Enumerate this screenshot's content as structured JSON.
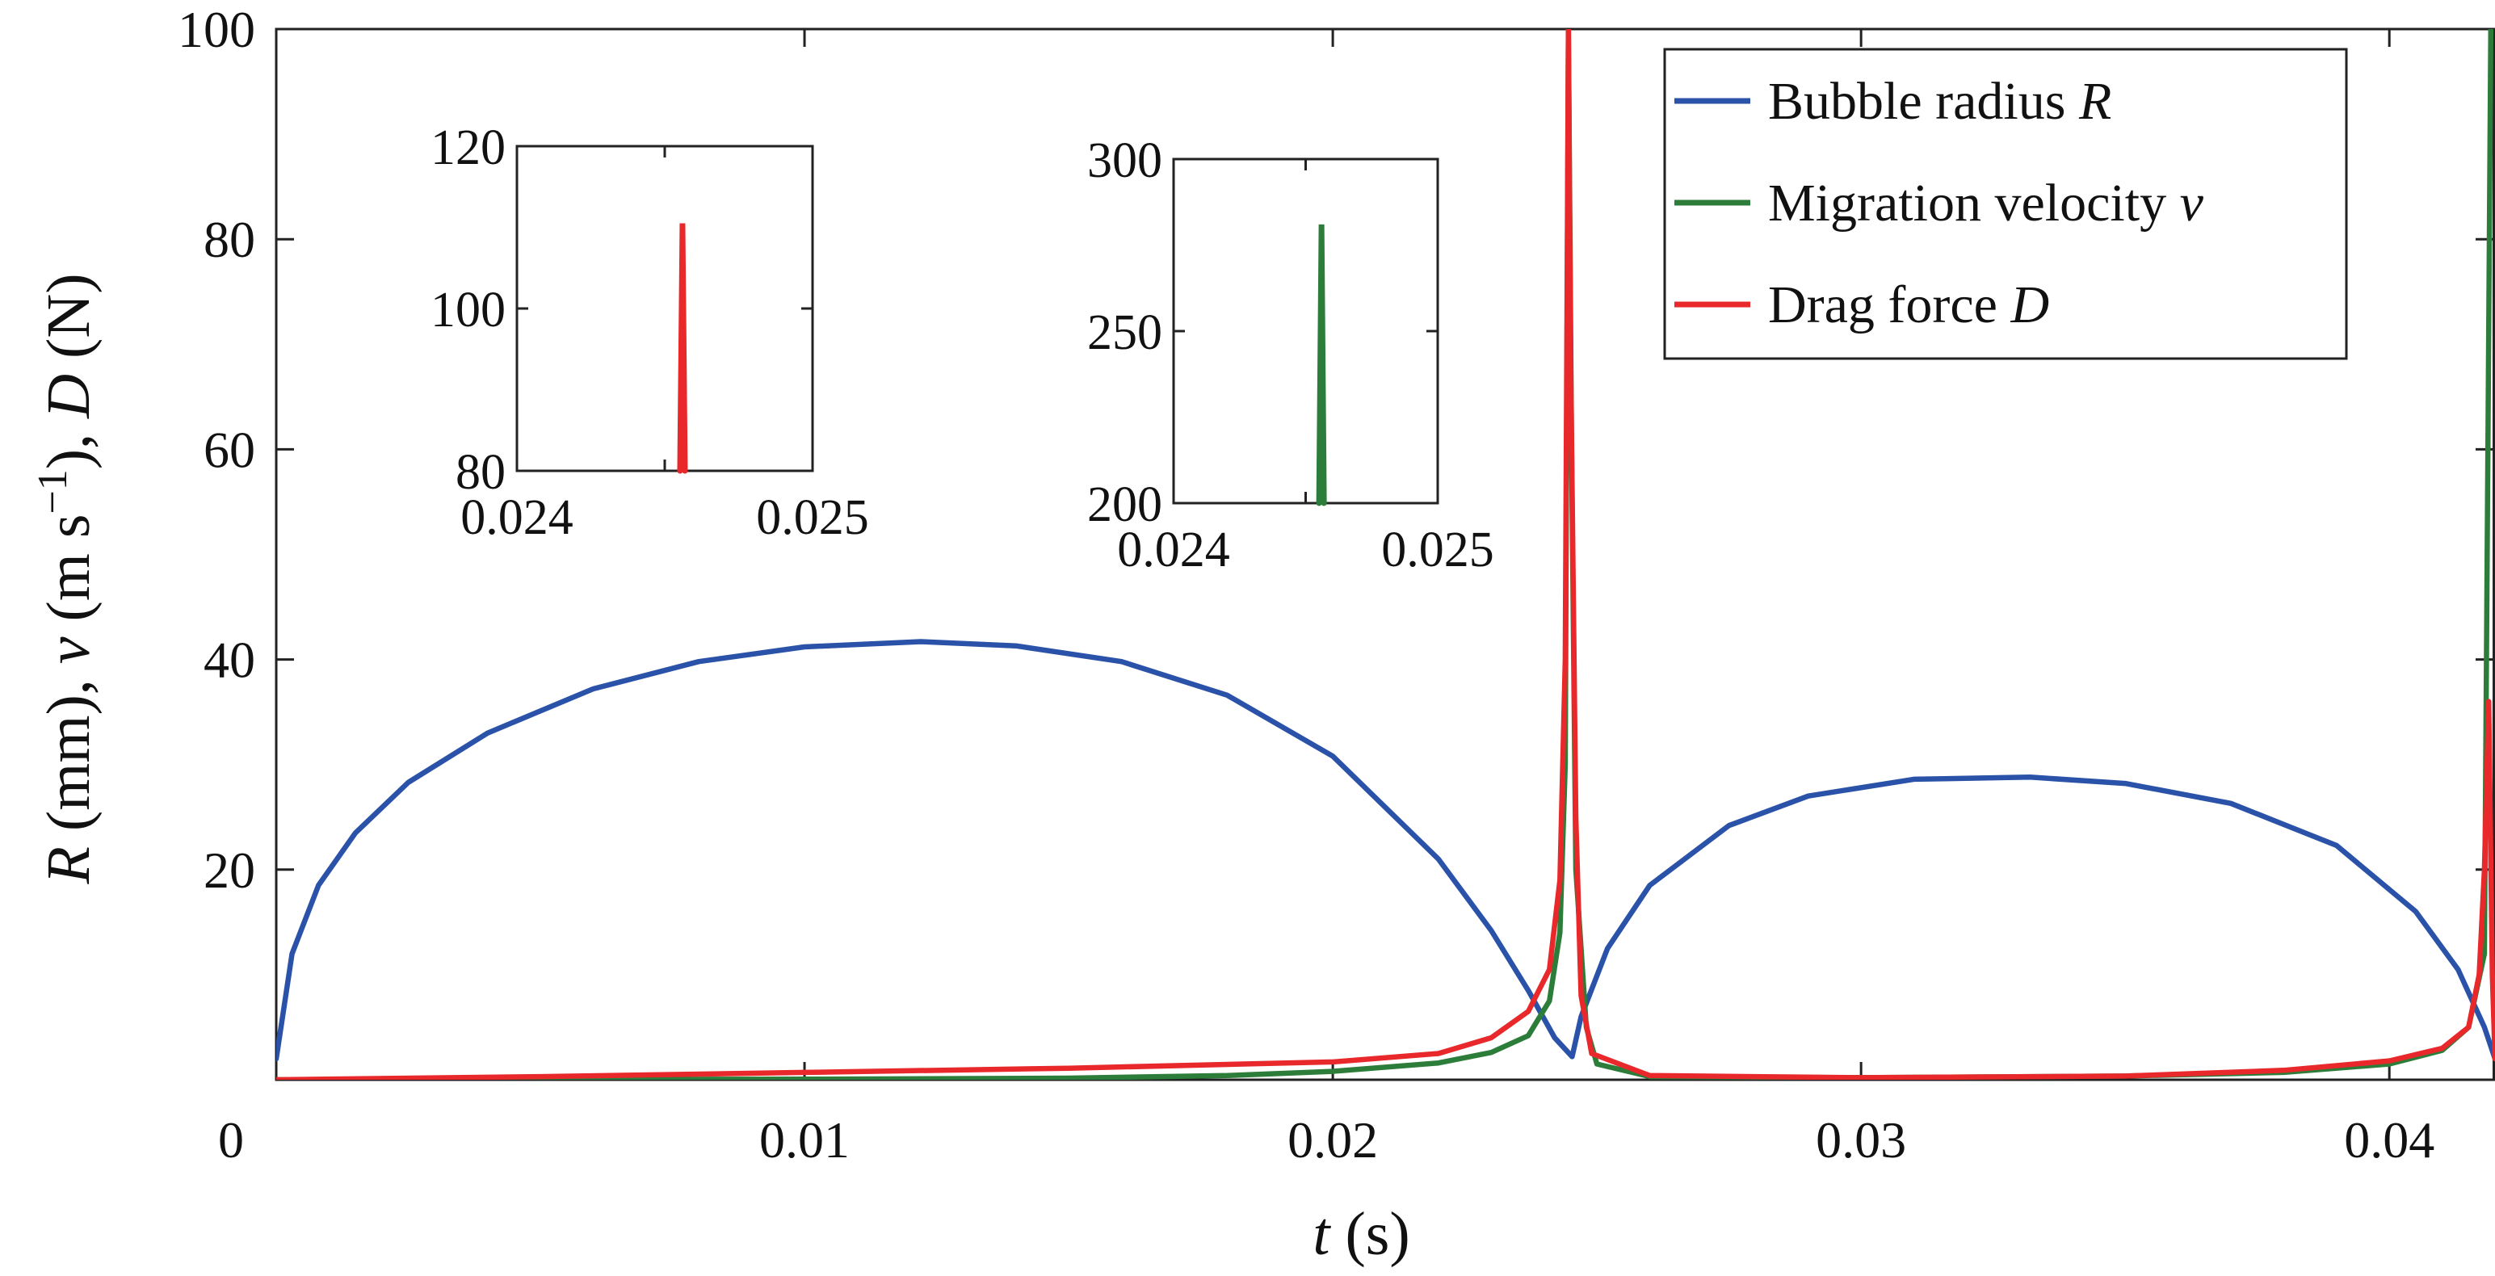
{
  "chart_data": {
    "type": "line",
    "xlabel": {
      "var": "t",
      "unit": " (s)"
    },
    "ylabel": {
      "parts": [
        {
          "text": "R",
          "italic": true
        },
        {
          "text": " (mm), "
        },
        {
          "text": "v",
          "italic": true
        },
        {
          "text": " (m s"
        },
        {
          "text": "−1",
          "sup": true
        },
        {
          "text": "), "
        },
        {
          "text": "D",
          "italic": true
        },
        {
          "text": " (N)"
        }
      ]
    },
    "xlim": [
      0,
      0.042
    ],
    "ylim": [
      0,
      100
    ],
    "xticks": [
      0,
      0.01,
      0.02,
      0.03,
      0.04
    ],
    "xtick_labels": [
      "0",
      "0.01",
      "0.02",
      "0.03",
      "0.04"
    ],
    "yticks": [
      20,
      40,
      60,
      80,
      100
    ],
    "ytick_labels": [
      "20",
      "40",
      "60",
      "80",
      "100"
    ],
    "grid": false,
    "legend_position": "top-right",
    "series": [
      {
        "name": "Bubble radius R",
        "label_text": "Bubble radius ",
        "label_var": "R",
        "color": "#2a52a8",
        "points": [
          [
            0,
            2
          ],
          [
            0.0003,
            12
          ],
          [
            0.0008,
            18.5
          ],
          [
            0.0015,
            23.5
          ],
          [
            0.0025,
            28.3
          ],
          [
            0.004,
            33
          ],
          [
            0.006,
            37.2
          ],
          [
            0.008,
            39.8
          ],
          [
            0.01,
            41.2
          ],
          [
            0.0122,
            41.7
          ],
          [
            0.014,
            41.3
          ],
          [
            0.016,
            39.8
          ],
          [
            0.018,
            36.6
          ],
          [
            0.02,
            30.8
          ],
          [
            0.022,
            21
          ],
          [
            0.023,
            14.2
          ],
          [
            0.0237,
            8.5
          ],
          [
            0.0242,
            4
          ],
          [
            0.02453,
            2.2
          ],
          [
            0.0247,
            6
          ],
          [
            0.0252,
            12.5
          ],
          [
            0.026,
            18.5
          ],
          [
            0.0275,
            24.2
          ],
          [
            0.029,
            27
          ],
          [
            0.031,
            28.6
          ],
          [
            0.0332,
            28.8
          ],
          [
            0.035,
            28.2
          ],
          [
            0.037,
            26.3
          ],
          [
            0.039,
            22.3
          ],
          [
            0.0405,
            16
          ],
          [
            0.0413,
            10.5
          ],
          [
            0.0418,
            5
          ],
          [
            0.042,
            2
          ]
        ]
      },
      {
        "name": "Migration velocity v",
        "label_text": "Migration velocity ",
        "label_var": "v",
        "color": "#2d7d3a",
        "points": [
          [
            0,
            0
          ],
          [
            0.01,
            0.05
          ],
          [
            0.015,
            0.15
          ],
          [
            0.018,
            0.4
          ],
          [
            0.02,
            0.8
          ],
          [
            0.022,
            1.6
          ],
          [
            0.023,
            2.6
          ],
          [
            0.0237,
            4.2
          ],
          [
            0.0241,
            7.5
          ],
          [
            0.0243,
            14
          ],
          [
            0.0244,
            30
          ],
          [
            0.02446,
            100
          ],
          [
            0.02452,
            60
          ],
          [
            0.0246,
            20
          ],
          [
            0.0248,
            5
          ],
          [
            0.025,
            1.5
          ],
          [
            0.026,
            0.3
          ],
          [
            0.03,
            0.2
          ],
          [
            0.035,
            0.35
          ],
          [
            0.038,
            0.7
          ],
          [
            0.04,
            1.5
          ],
          [
            0.041,
            2.8
          ],
          [
            0.0415,
            5
          ],
          [
            0.0418,
            12
          ],
          [
            0.04192,
            100
          ]
        ]
      },
      {
        "name": "Drag force D",
        "label_text": "Drag force ",
        "label_var": "D",
        "color": "#e8282a",
        "points": [
          [
            0,
            0
          ],
          [
            0.005,
            0.3
          ],
          [
            0.01,
            0.7
          ],
          [
            0.015,
            1.1
          ],
          [
            0.02,
            1.7
          ],
          [
            0.022,
            2.5
          ],
          [
            0.023,
            4
          ],
          [
            0.0237,
            6.5
          ],
          [
            0.0241,
            10.5
          ],
          [
            0.0243,
            19
          ],
          [
            0.0244,
            40
          ],
          [
            0.02446,
            100
          ],
          [
            0.0245,
            70
          ],
          [
            0.0246,
            25
          ],
          [
            0.0247,
            8
          ],
          [
            0.0249,
            2.5
          ],
          [
            0.026,
            0.4
          ],
          [
            0.03,
            0.2
          ],
          [
            0.035,
            0.35
          ],
          [
            0.038,
            0.9
          ],
          [
            0.04,
            1.8
          ],
          [
            0.041,
            3
          ],
          [
            0.0415,
            5
          ],
          [
            0.0417,
            10
          ],
          [
            0.0418,
            20
          ],
          [
            0.04188,
            36
          ],
          [
            0.04195,
            10
          ],
          [
            0.042,
            2
          ]
        ]
      }
    ],
    "insets": [
      {
        "xlim": [
          0.024,
          0.025
        ],
        "ylim": [
          80,
          120
        ],
        "xtick_labels": [
          "0.024",
          "0.025"
        ],
        "yticks": [
          80,
          100,
          120
        ],
        "ytick_labels": [
          "80",
          "100",
          "120"
        ],
        "series_color": "#e8282a",
        "peak": {
          "t": 0.02456,
          "value": 110.5
        }
      },
      {
        "xlim": [
          0.024,
          0.025
        ],
        "ylim": [
          200,
          300
        ],
        "xtick_labels": [
          "0.024",
          "0.025"
        ],
        "yticks": [
          200,
          250,
          300
        ],
        "ytick_labels": [
          "200",
          "250",
          "300"
        ],
        "series_color": "#2d7d3a",
        "peak": {
          "t": 0.02456,
          "value": 281
        }
      }
    ]
  }
}
